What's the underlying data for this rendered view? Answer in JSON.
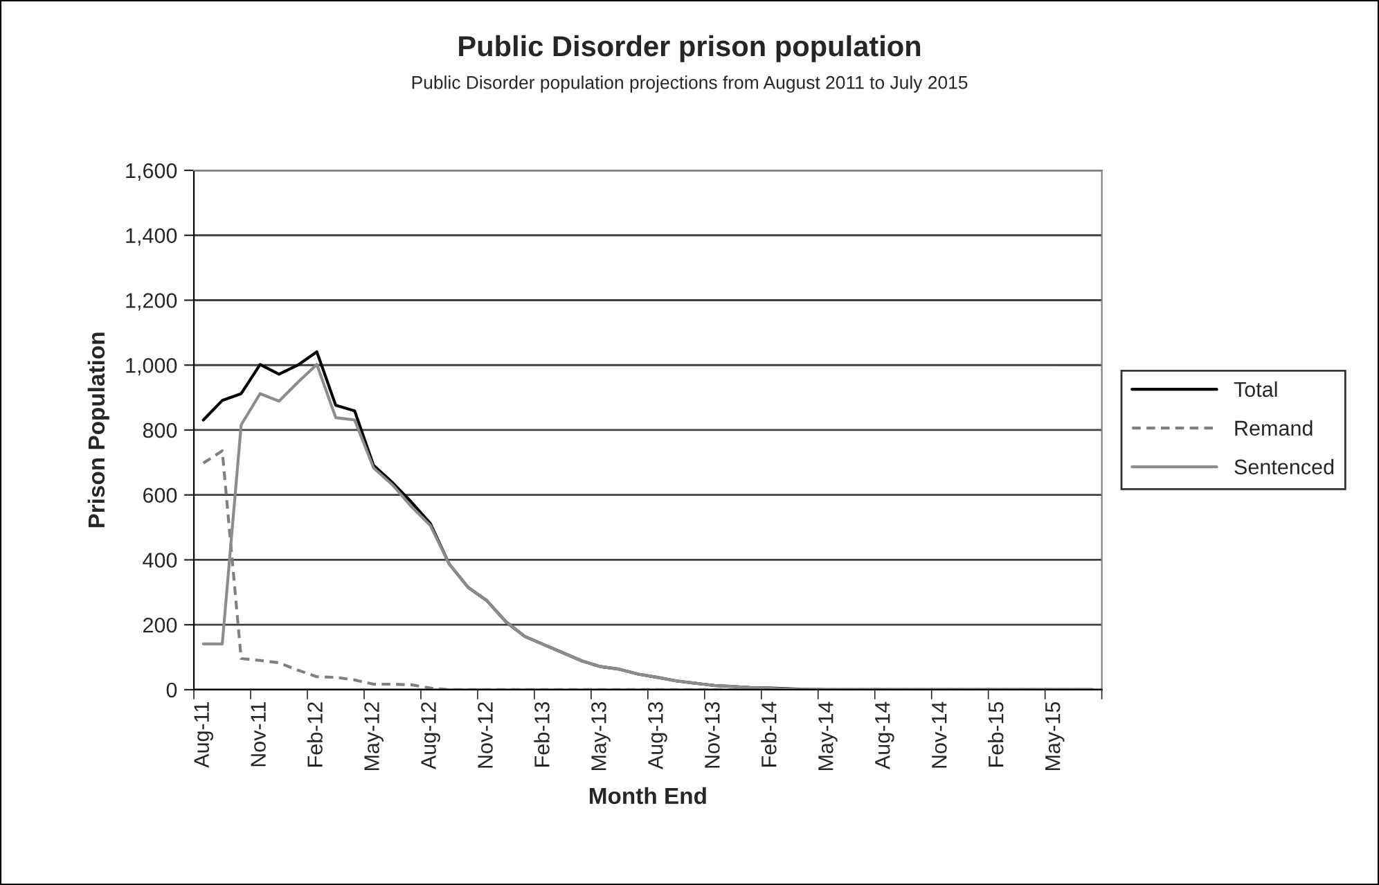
{
  "chart_data": {
    "type": "line",
    "title": "Public Disorder prison population",
    "subtitle": "Public Disorder population projections from August 2011 to July 2015",
    "xlabel": "Month End",
    "ylabel": "Prison Population",
    "categories": [
      "Aug-11",
      null,
      null,
      "Nov-11",
      null,
      null,
      "Feb-12",
      null,
      null,
      "May-12",
      null,
      null,
      "Aug-12",
      null,
      null,
      "Nov-12",
      null,
      null,
      "Feb-13",
      null,
      null,
      "May-13",
      null,
      null,
      "Aug-13",
      null,
      null,
      "Nov-13",
      null,
      null,
      "Feb-14",
      null,
      null,
      "May-14",
      null,
      null,
      "Aug-14",
      null,
      null,
      "Nov-14",
      null,
      null,
      "Feb-15",
      null,
      null,
      "May-15",
      null,
      null
    ],
    "series": [
      {
        "name": "Total",
        "color": "#000000",
        "line_style": "solid",
        "values": [
          831,
          891,
          912,
          1002,
          972,
          1000,
          1041,
          876,
          859,
          691,
          638,
          578,
          512,
          387,
          315,
          274,
          209,
          164,
          139,
          114,
          89,
          71,
          63,
          48,
          38,
          27,
          20,
          13,
          10,
          6,
          5,
          3,
          1,
          0,
          0,
          0,
          0,
          0,
          0,
          0,
          0,
          0,
          0,
          0,
          0,
          0,
          0,
          0
        ]
      },
      {
        "name": "Remand",
        "color": "#808080",
        "line_style": "dashed",
        "values": [
          698,
          736,
          96,
          90,
          83,
          60,
          40,
          38,
          30,
          17,
          17,
          15,
          5,
          0,
          0,
          0,
          0,
          0,
          0,
          0,
          0,
          0,
          0,
          0,
          0,
          0,
          0,
          0,
          0,
          0,
          0,
          0,
          0,
          0,
          0,
          0,
          0,
          0,
          0,
          0,
          0,
          0,
          0,
          0,
          0,
          0,
          0,
          0
        ]
      },
      {
        "name": "Sentenced",
        "color": "#8c8c8c",
        "line_style": "solid",
        "values": [
          141,
          141,
          816,
          912,
          889,
          947,
          1002,
          838,
          831,
          683,
          631,
          564,
          506,
          387,
          315,
          274,
          209,
          164,
          139,
          114,
          89,
          71,
          63,
          48,
          38,
          27,
          20,
          13,
          10,
          6,
          4,
          2,
          1,
          0,
          0,
          0,
          0,
          0,
          0,
          0,
          0,
          0,
          0,
          0,
          0,
          0,
          0,
          0
        ]
      }
    ],
    "ylim": [
      0,
      1600
    ],
    "yticks": [
      0,
      200,
      400,
      600,
      800,
      {
        "value": 1000,
        "label": "1,000"
      },
      {
        "value": 1200,
        "label": "1,200"
      },
      {
        "value": 1400,
        "label": "1,400"
      },
      {
        "value": 1600,
        "label": "1,600"
      }
    ],
    "grid": "y",
    "legend": "right",
    "marker": "none"
  }
}
